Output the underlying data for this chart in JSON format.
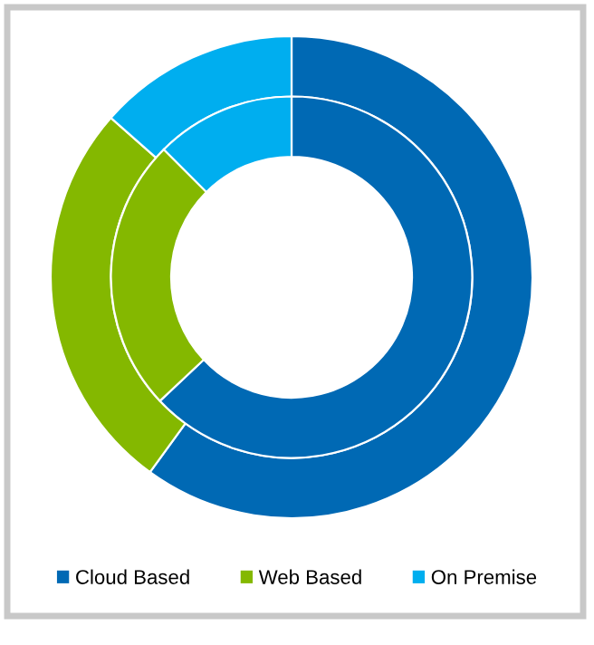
{
  "chart_data": {
    "type": "donut",
    "categories": [
      "Cloud Based",
      "Web Based",
      "On Premise"
    ],
    "colors": [
      "#0069b4",
      "#84b800",
      "#00aeef"
    ],
    "series": [
      {
        "values": [
          60.0,
          26.5,
          13.5
        ]
      },
      {
        "values": [
          63.0,
          24.5,
          12.5
        ]
      }
    ],
    "legend": "bottom"
  }
}
